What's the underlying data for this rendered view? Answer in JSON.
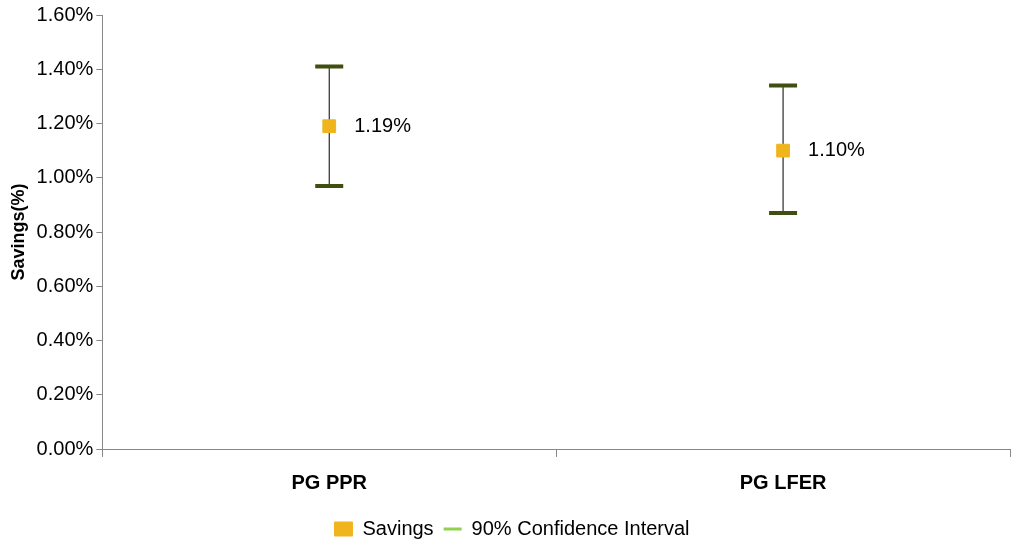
{
  "chart_data": {
    "type": "scatter",
    "ylabel": "Savings(%)",
    "categories": [
      "PG PPR",
      "PG LFER"
    ],
    "series": [
      {
        "name": "Savings",
        "color": "#f0b41c",
        "values": [
          1.19,
          1.1
        ],
        "errors": [
          [
            0.97,
            1.41
          ],
          [
            0.87,
            1.34
          ]
        ],
        "value_labels": [
          "1.19%",
          "1.10%"
        ]
      },
      {
        "name": "90% Confidence Interval",
        "type": "line",
        "color": "#92d050",
        "values": [
          null,
          null
        ]
      }
    ],
    "ylim": [
      0,
      1.6
    ],
    "yticks": [
      {
        "value": 0,
        "label": "0.00%"
      },
      {
        "value": 0.2,
        "label": "0.20%"
      },
      {
        "value": 0.4,
        "label": "0.40%"
      },
      {
        "value": 0.6,
        "label": "0.60%"
      },
      {
        "value": 0.8,
        "label": "0.80%"
      },
      {
        "value": 1,
        "label": "1.00%"
      },
      {
        "value": 1.2,
        "label": "1.20%"
      },
      {
        "value": 1.4,
        "label": "1.40%"
      },
      {
        "value": 1.6,
        "label": "1.60%"
      }
    ],
    "grid": false,
    "legend": "bottom",
    "marker": "square"
  }
}
